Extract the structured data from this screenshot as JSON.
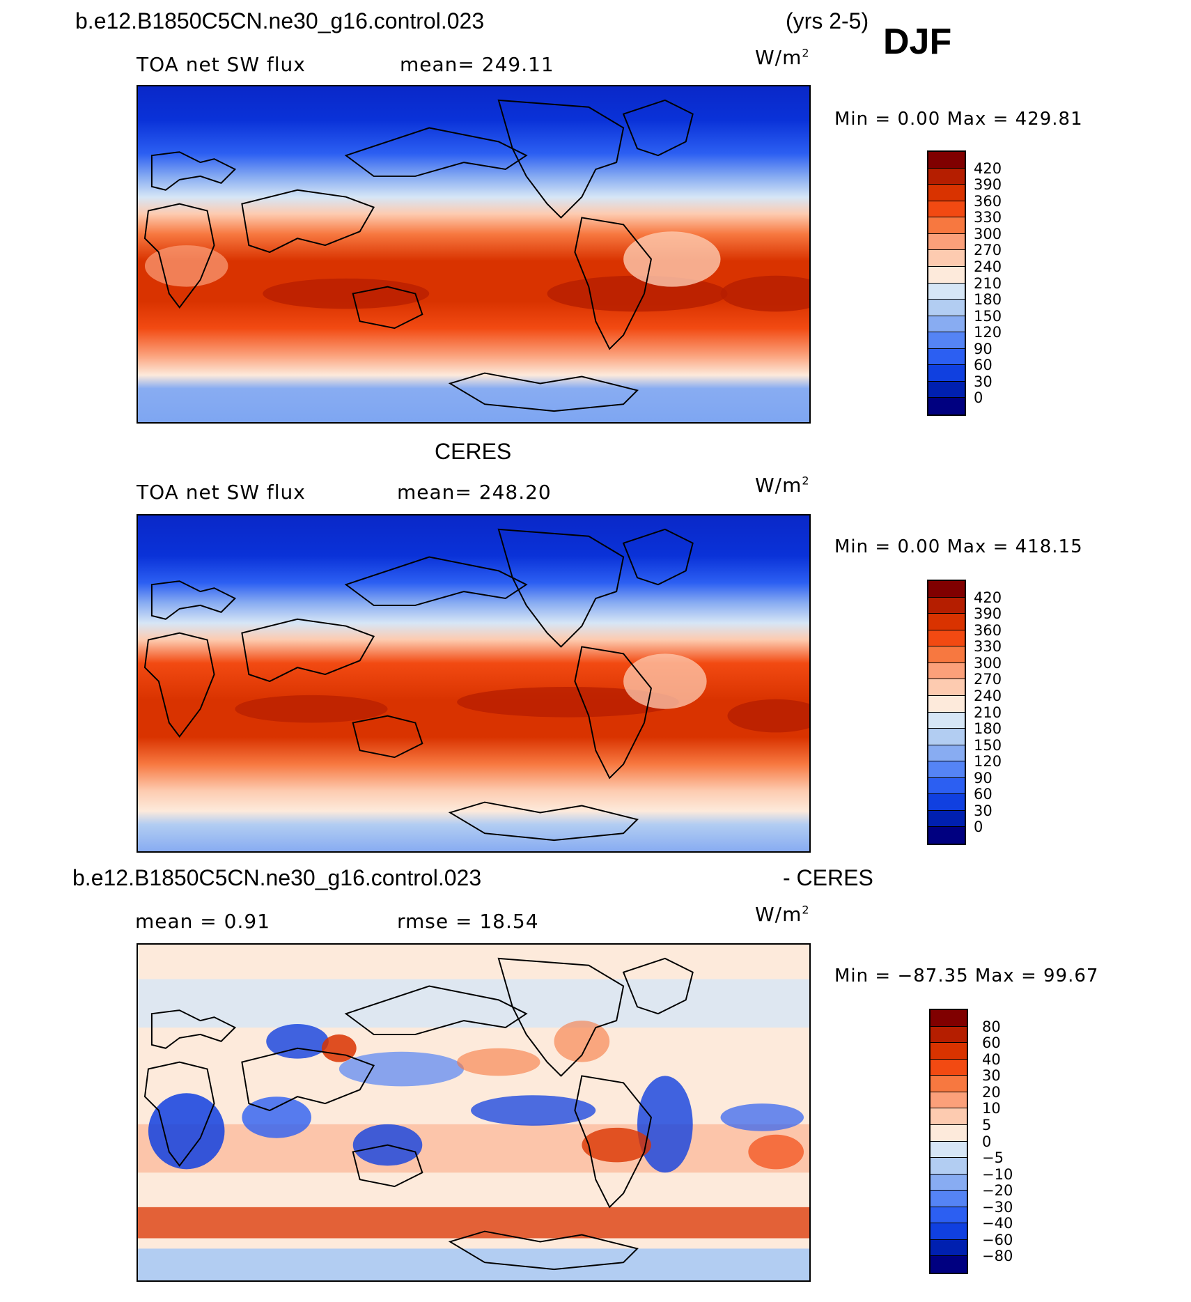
{
  "header": {
    "case_name": "b.e12.B1850C5CN.ne30_g16.control.023",
    "years": "(yrs 2-5)",
    "season": "DJF"
  },
  "panels": [
    {
      "id": "model",
      "variable": "TOA net SW flux",
      "stat": "mean=  249.11",
      "units": "W/m",
      "units_sup": "2",
      "minmax": "Min  =     0.00  Max  =  429.81",
      "levels": [
        "420",
        "390",
        "360",
        "330",
        "300",
        "270",
        "240",
        "210",
        "180",
        "150",
        "120",
        "90",
        "60",
        "30",
        "0"
      ],
      "colors": [
        "#800000",
        "#b51e00",
        "#d93300",
        "#f24a12",
        "#f77840",
        "#fba07a",
        "#fdcbb0",
        "#fdeadb",
        "#d6e6f6",
        "#b2cdf2",
        "#88acf2",
        "#5584f5",
        "#2c5ff2",
        "#1040e0",
        "#0020b0",
        "#000080"
      ]
    },
    {
      "id": "obs",
      "title": "CERES",
      "variable": "TOA net SW flux",
      "stat": "mean=  248.20",
      "units": "W/m",
      "units_sup": "2",
      "minmax": "Min  =     0.00  Max  =  418.15",
      "levels": [
        "420",
        "390",
        "360",
        "330",
        "300",
        "270",
        "240",
        "210",
        "180",
        "150",
        "120",
        "90",
        "60",
        "30",
        "0"
      ],
      "colors": [
        "#800000",
        "#b51e00",
        "#d93300",
        "#f24a12",
        "#f77840",
        "#fba07a",
        "#fdcbb0",
        "#fdeadb",
        "#d6e6f6",
        "#b2cdf2",
        "#88acf2",
        "#5584f5",
        "#2c5ff2",
        "#1040e0",
        "#0020b0",
        "#000080"
      ]
    },
    {
      "id": "diff",
      "title_left": "b.e12.B1850C5CN.ne30_g16.control.023",
      "title_right": "- CERES",
      "stat_mean": "mean  =     0.91",
      "stat_rmse": "rmse  =    18.54",
      "units": "W/m",
      "units_sup": "2",
      "minmax": "Min  =  −87.35  Max  =    99.67",
      "levels": [
        "80",
        "60",
        "40",
        "30",
        "20",
        "10",
        "5",
        "0",
        "−5",
        "−10",
        "−20",
        "−30",
        "−40",
        "−60",
        "−80"
      ],
      "colors": [
        "#800000",
        "#b51e00",
        "#d93300",
        "#f24a12",
        "#f77840",
        "#fba07a",
        "#fdcbb0",
        "#fdeadb",
        "#d6e6f6",
        "#b2cdf2",
        "#88acf2",
        "#5584f5",
        "#2c5ff2",
        "#1040e0",
        "#0020b0",
        "#000080"
      ]
    }
  ]
}
